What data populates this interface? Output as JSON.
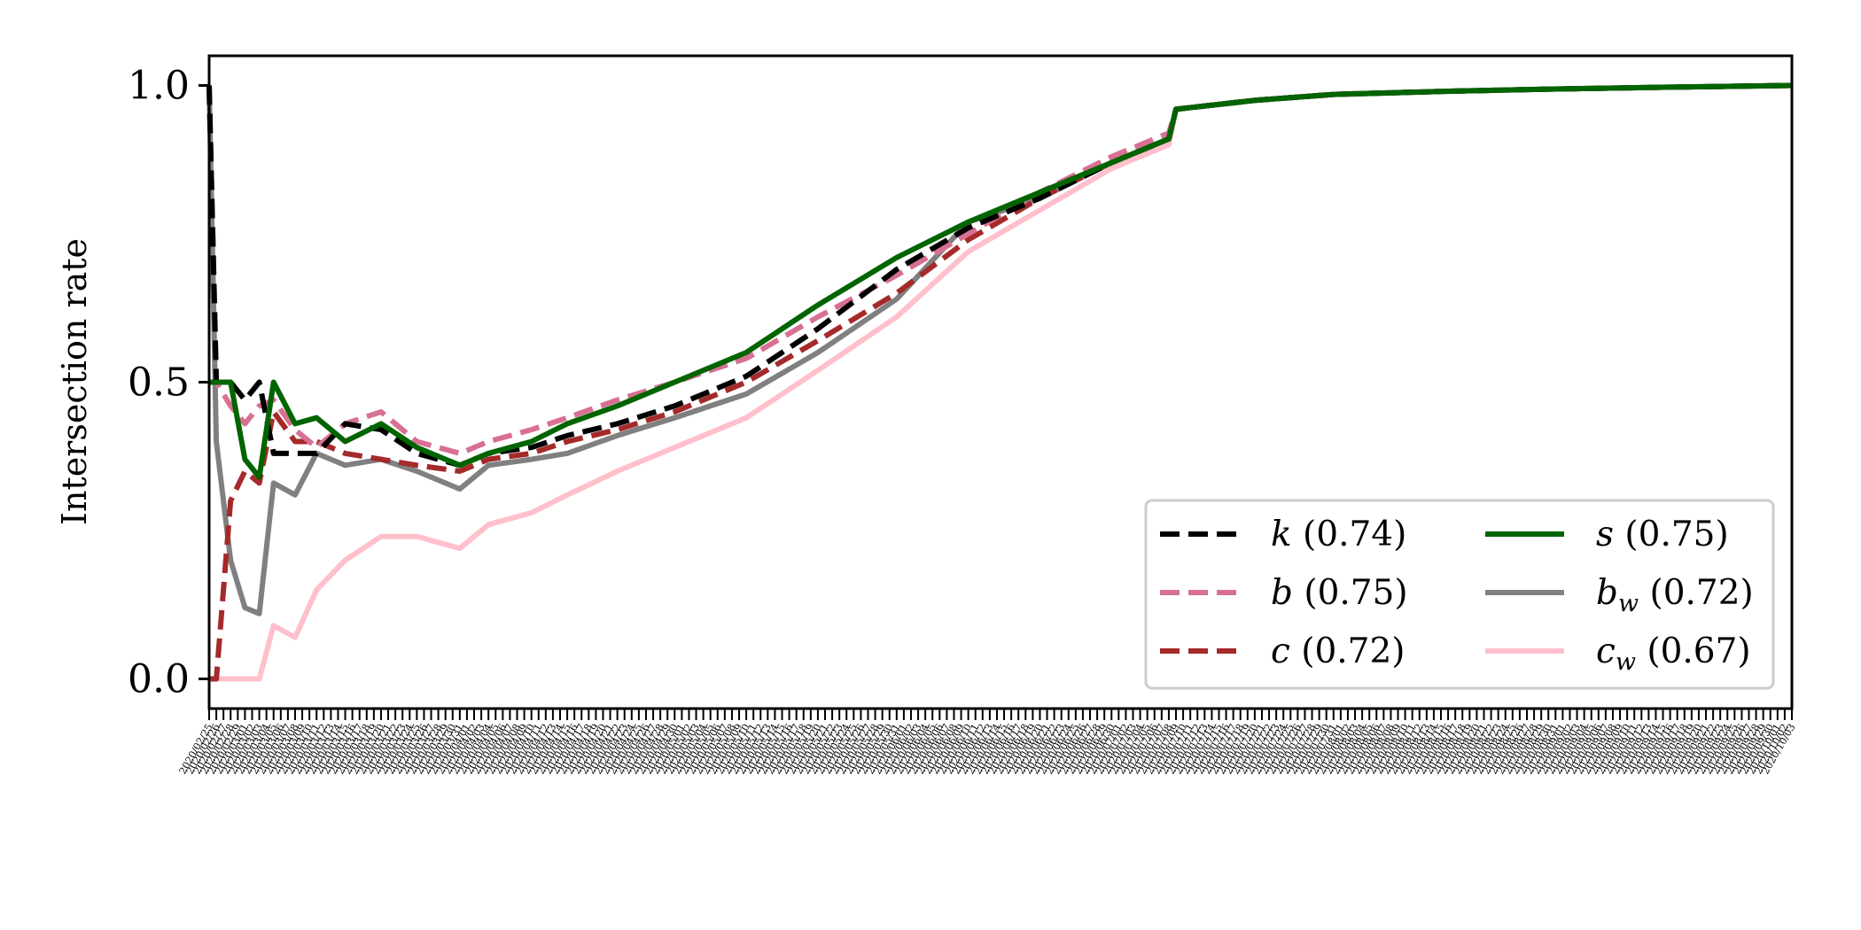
{
  "chart_data": {
    "type": "line",
    "title": "",
    "xlabel": "",
    "ylabel": "Intersection rate",
    "ylim": [
      -0.05,
      1.05
    ],
    "yticks": [
      0.0,
      0.5,
      1.0
    ],
    "ytick_labels": [
      "0.0",
      "0.5",
      "1.0"
    ],
    "x_start": "2020/02/25",
    "x_end": "2020/10/03",
    "x_ticks_every_days": 1,
    "x_tick_label_rotation": 60,
    "grid": false,
    "legend": {
      "placement": "lower-right",
      "columns": 2
    },
    "x_control_dates": [
      "2020/02/25",
      "2020/02/26",
      "2020/02/28",
      "2020/03/01",
      "2020/03/03",
      "2020/03/05",
      "2020/03/08",
      "2020/03/11",
      "2020/03/15",
      "2020/03/20",
      "2020/03/25",
      "2020/03/31",
      "2020/04/04",
      "2020/04/10",
      "2020/04/15",
      "2020/04/22",
      "2020/04/30",
      "2020/05/10",
      "2020/05/20",
      "2020/05/31",
      "2020/06/10",
      "2020/06/20",
      "2020/06/30",
      "2020/07/08",
      "2020/07/09",
      "2020/07/20",
      "2020/07/31",
      "2020/08/15",
      "2020/08/31",
      "2020/09/15",
      "2020/10/03"
    ],
    "series": [
      {
        "name": "k",
        "legend_label": "(0.74)",
        "color": "#000000",
        "dash": true,
        "values": [
          1.0,
          0.5,
          0.5,
          0.47,
          0.5,
          0.38,
          0.38,
          0.38,
          0.43,
          0.42,
          0.38,
          0.36,
          0.38,
          0.39,
          0.41,
          0.43,
          0.46,
          0.51,
          0.59,
          0.69,
          0.76,
          0.81,
          0.87,
          0.91,
          0.96,
          0.975,
          0.985,
          0.99,
          0.994,
          0.997,
          1.0
        ]
      },
      {
        "name": "b",
        "legend_label": "(0.75)",
        "color": "#d87093",
        "dash": true,
        "values": [
          1.0,
          0.5,
          0.46,
          0.43,
          0.46,
          0.47,
          0.42,
          0.39,
          0.43,
          0.45,
          0.4,
          0.38,
          0.4,
          0.42,
          0.44,
          0.47,
          0.5,
          0.54,
          0.61,
          0.68,
          0.75,
          0.82,
          0.88,
          0.92,
          0.96,
          0.975,
          0.985,
          0.99,
          0.994,
          0.997,
          1.0
        ]
      },
      {
        "name": "c",
        "legend_label": "(0.72)",
        "color": "#a52a2a",
        "dash": true,
        "values": [
          0.0,
          0.0,
          0.3,
          0.35,
          0.33,
          0.45,
          0.4,
          0.4,
          0.38,
          0.37,
          0.36,
          0.35,
          0.37,
          0.38,
          0.4,
          0.42,
          0.45,
          0.5,
          0.57,
          0.65,
          0.74,
          0.81,
          0.87,
          0.91,
          0.96,
          0.975,
          0.985,
          0.99,
          0.994,
          0.997,
          1.0
        ]
      },
      {
        "name": "s",
        "legend_label": "(0.75)",
        "color": "#006400",
        "dash": false,
        "values": [
          0.5,
          0.5,
          0.5,
          0.37,
          0.34,
          0.5,
          0.43,
          0.44,
          0.4,
          0.43,
          0.39,
          0.36,
          0.38,
          0.4,
          0.43,
          0.46,
          0.5,
          0.55,
          0.63,
          0.71,
          0.77,
          0.82,
          0.87,
          0.91,
          0.96,
          0.975,
          0.985,
          0.99,
          0.994,
          0.997,
          1.0
        ]
      },
      {
        "name": "b",
        "subscript": "w",
        "legend_label": "(0.72)",
        "color": "#808080",
        "dash": false,
        "values": [
          1.0,
          0.4,
          0.2,
          0.12,
          0.11,
          0.33,
          0.31,
          0.38,
          0.36,
          0.37,
          0.35,
          0.32,
          0.36,
          0.37,
          0.38,
          0.41,
          0.44,
          0.48,
          0.55,
          0.64,
          0.77,
          0.81,
          0.87,
          0.91,
          0.96,
          0.975,
          0.985,
          0.99,
          0.994,
          0.997,
          1.0
        ]
      },
      {
        "name": "c",
        "subscript": "w",
        "legend_label": "(0.67)",
        "color": "#ffc0cb",
        "dash": false,
        "values": [
          0.0,
          0.0,
          0.0,
          0.0,
          0.0,
          0.09,
          0.07,
          0.15,
          0.2,
          0.24,
          0.24,
          0.22,
          0.26,
          0.28,
          0.31,
          0.35,
          0.39,
          0.44,
          0.52,
          0.61,
          0.72,
          0.79,
          0.86,
          0.9,
          0.96,
          0.975,
          0.985,
          0.99,
          0.994,
          0.997,
          1.0
        ]
      }
    ]
  }
}
